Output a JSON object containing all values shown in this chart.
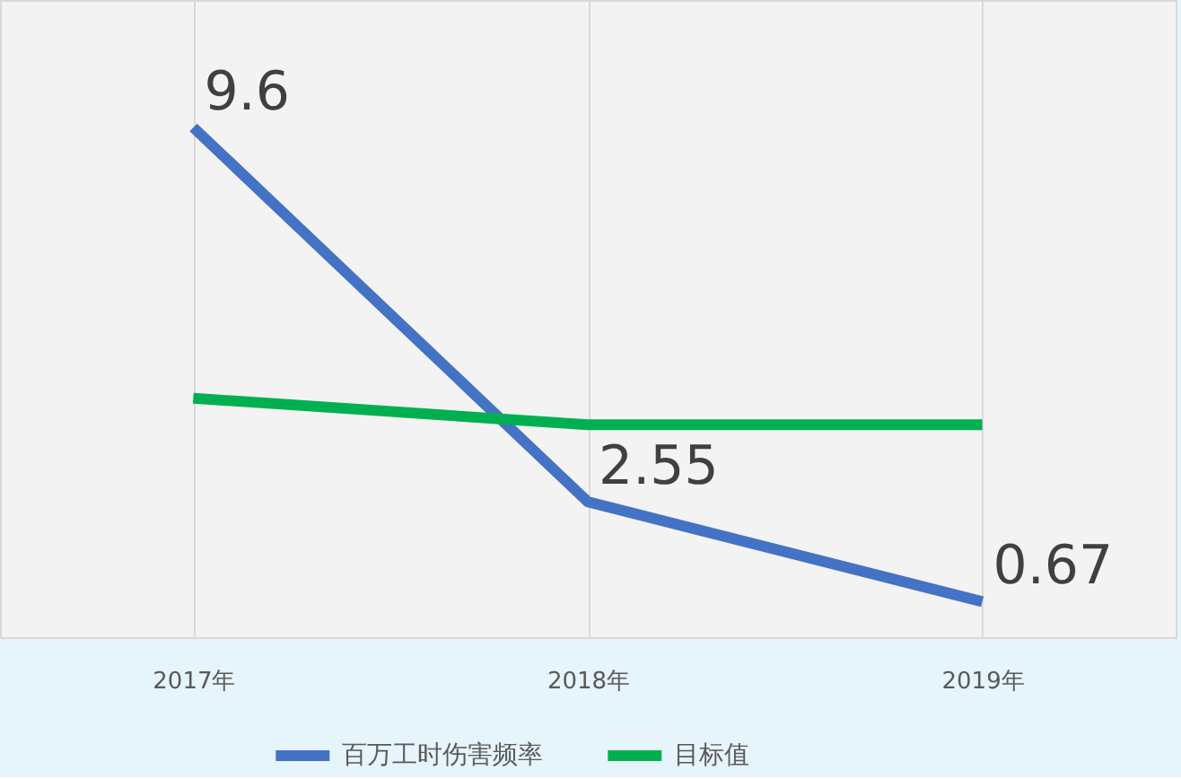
{
  "chart_data": {
    "type": "line",
    "categories": [
      "2017年",
      "2018年",
      "2019年"
    ],
    "series": [
      {
        "name": "百万工时伤害频率",
        "color": "#4472c4",
        "values": [
          9.6,
          2.55,
          0.67
        ],
        "value_labels": [
          "9.6",
          "2.55",
          "0.67"
        ]
      },
      {
        "name": "目标值",
        "color": "#00b050",
        "values": [
          4.5,
          4.0,
          4.0
        ]
      }
    ],
    "ylim": [
      0,
      12
    ],
    "tick_labels": "x",
    "grid": "x",
    "legend": "bottom",
    "line_style": "solid"
  }
}
